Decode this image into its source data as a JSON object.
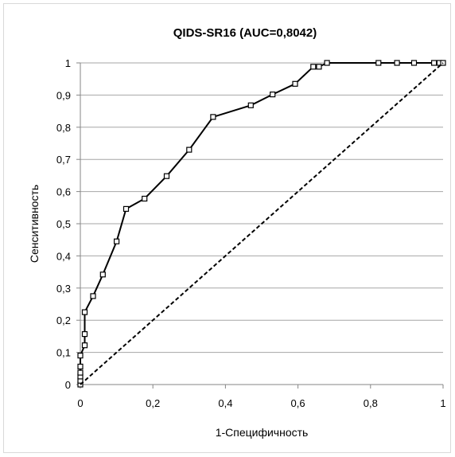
{
  "chart_data": {
    "type": "line",
    "title": "QIDS-SR16 (AUC=0,8042)",
    "xlabel": "1-Специфичность",
    "ylabel": "Сенситивность",
    "xlim": [
      0,
      1
    ],
    "ylim": [
      0,
      1
    ],
    "x_ticks": [
      "0",
      "0,2",
      "0,4",
      "0,6",
      "0,8",
      "1"
    ],
    "y_ticks": [
      "0",
      "0,1",
      "0,2",
      "0,3",
      "0,4",
      "0,5",
      "0,6",
      "0,7",
      "0,8",
      "0,9",
      "1"
    ],
    "grid": "horizontal",
    "legend": "none",
    "series": [
      {
        "style": "solid-with-square-markers",
        "color": "#000000",
        "points": [
          [
            0,
            0
          ],
          [
            0,
            0.012
          ],
          [
            0,
            0.025
          ],
          [
            0,
            0.037
          ],
          [
            0,
            0.056
          ],
          [
            0,
            0.09
          ],
          [
            0.012,
            0.122
          ],
          [
            0.012,
            0.157
          ],
          [
            0.012,
            0.225
          ],
          [
            0.035,
            0.275
          ],
          [
            0.062,
            0.342
          ],
          [
            0.1,
            0.445
          ],
          [
            0.126,
            0.546
          ],
          [
            0.177,
            0.578
          ],
          [
            0.238,
            0.648
          ],
          [
            0.3,
            0.73
          ],
          [
            0.366,
            0.832
          ],
          [
            0.47,
            0.868
          ],
          [
            0.53,
            0.902
          ],
          [
            0.592,
            0.935
          ],
          [
            0.642,
            0.988
          ],
          [
            0.658,
            0.988
          ],
          [
            0.68,
            1.0
          ],
          [
            0.822,
            1.0
          ],
          [
            0.873,
            1.0
          ],
          [
            0.92,
            1.0
          ],
          [
            0.975,
            1.0
          ],
          [
            0.99,
            1.0
          ],
          [
            1.0,
            1.0
          ]
        ]
      },
      {
        "style": "dashed",
        "color": "#000000",
        "points": [
          [
            0,
            0
          ],
          [
            1,
            1
          ]
        ]
      }
    ]
  }
}
